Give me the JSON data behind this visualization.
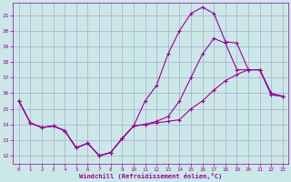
{
  "xlabel": "Windchill (Refroidissement éolien,°C)",
  "background_color": "#cbe8e8",
  "grid_color": "#aaaacc",
  "line_color": "#990099",
  "hours": [
    0,
    1,
    2,
    3,
    4,
    5,
    6,
    7,
    8,
    9,
    10,
    11,
    12,
    13,
    14,
    15,
    16,
    17,
    18,
    19,
    20,
    21,
    22,
    23
  ],
  "series1": [
    15.5,
    14.1,
    13.8,
    13.9,
    13.6,
    12.5,
    12.8,
    12.0,
    12.2,
    13.1,
    13.9,
    15.5,
    16.5,
    18.5,
    20.0,
    21.1,
    21.5,
    21.1,
    19.3,
    19.2,
    17.5,
    17.5,
    16.0,
    15.8
  ],
  "series2": [
    15.5,
    14.1,
    13.8,
    13.9,
    13.6,
    12.5,
    12.8,
    12.0,
    12.2,
    13.1,
    13.9,
    14.0,
    14.1,
    14.2,
    14.3,
    15.0,
    15.5,
    16.2,
    16.8,
    17.2,
    17.5,
    17.5,
    15.9,
    15.8
  ],
  "series3": [
    15.5,
    14.1,
    13.8,
    13.9,
    13.6,
    12.5,
    12.8,
    12.0,
    12.2,
    13.1,
    13.9,
    14.0,
    14.2,
    14.5,
    15.5,
    17.0,
    18.5,
    19.5,
    19.2,
    17.5,
    17.5,
    17.5,
    15.9,
    15.8
  ],
  "ylim": [
    11.5,
    21.8
  ],
  "yticks": [
    12,
    13,
    14,
    15,
    16,
    17,
    18,
    19,
    20,
    21
  ],
  "xlim": [
    -0.5,
    23.5
  ],
  "xticks": [
    0,
    1,
    2,
    3,
    4,
    5,
    6,
    7,
    8,
    9,
    10,
    11,
    12,
    13,
    14,
    15,
    16,
    17,
    18,
    19,
    20,
    21,
    22,
    23
  ]
}
